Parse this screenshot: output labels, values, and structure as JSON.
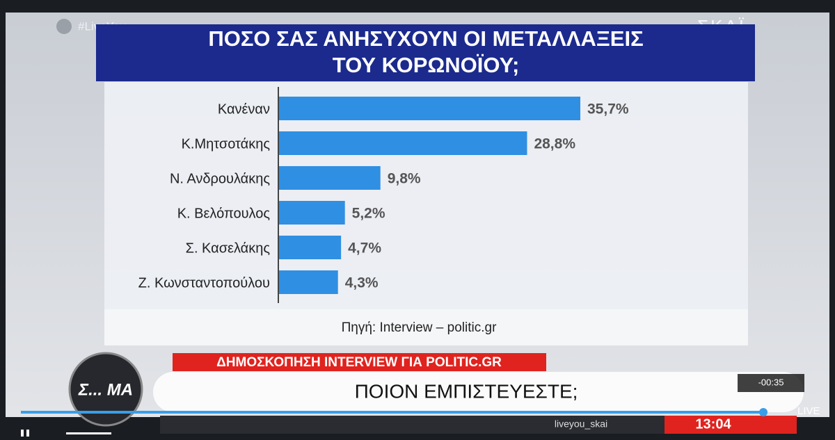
{
  "chart_data": {
    "type": "hbar",
    "title": [
      "ΠΟΣΟ ΣΑΣ ΑΝΗΣΥΧΟΥΝ ΟΙ ΜΕΤΑΛΛΑΞΕΙΣ",
      "ΤΟΥ ΚΟΡΩΝΟΪΟΥ;"
    ],
    "categories": [
      "Κανέναν",
      "Κ.Μητσοτάκης",
      "Ν. Ανδρουλάκης",
      "Κ. Βελόπουλος",
      "Σ. Κασελάκης",
      "Ζ. Κωνσταντοπούλου"
    ],
    "values": [
      35.7,
      28.8,
      9.8,
      5.2,
      4.7,
      4.3
    ],
    "value_labels": [
      "35,7%",
      "28,8%",
      "9,8%",
      "5,2%",
      "4,7%",
      "4,3%"
    ],
    "color": "#2f8fe3",
    "source": "Πηγή: Interview – politic.gr"
  },
  "broadcast": {
    "channel_tag": "#LiveYou",
    "channel_logo": "ΣΚΑΪ",
    "ticker_heading": "ΔΗΜΟΣΚΟΠΗΣΗ INTERVIEW ΓΙΑ POLITIC.GR",
    "headline": "ΠΟΙΟΝ ΕΜΠΙΣΤΕΥΕΣΤΕ;",
    "show_logo": "Σ... ΜΑ",
    "handle": "liveyou_skai",
    "clock": "13:04"
  },
  "player": {
    "remaining": "-00:35",
    "live": "LIVE"
  }
}
